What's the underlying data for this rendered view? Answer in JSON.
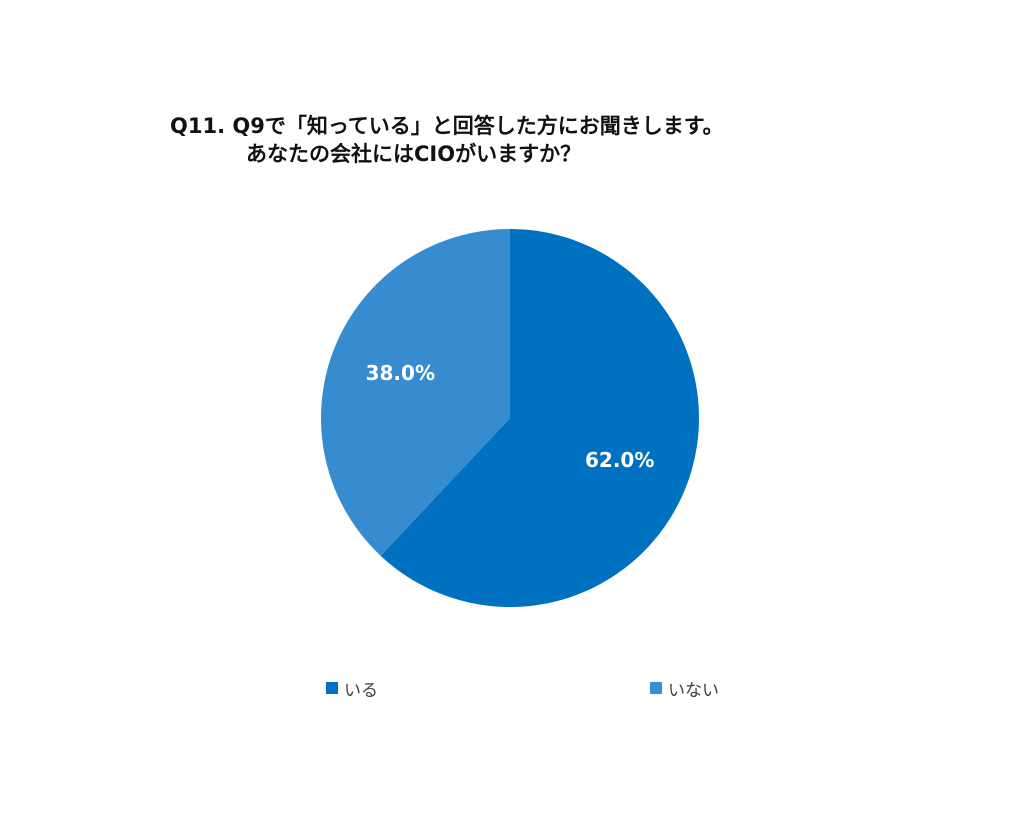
{
  "chart_data": {
    "type": "pie",
    "title_line1": "Q11. Q9で「知っている」と回答した方にお聞きします。",
    "title_line2": "あなたの会社にはCIOがいますか？",
    "slices": [
      {
        "label": "いる",
        "value": 62.0,
        "display": "62.0%",
        "color": "#0070C0"
      },
      {
        "label": "いない",
        "value": 38.0,
        "display": "38.0%",
        "color": "#368CCF"
      }
    ],
    "legend_position": "bottom",
    "label_color": "#FFFFFF"
  }
}
